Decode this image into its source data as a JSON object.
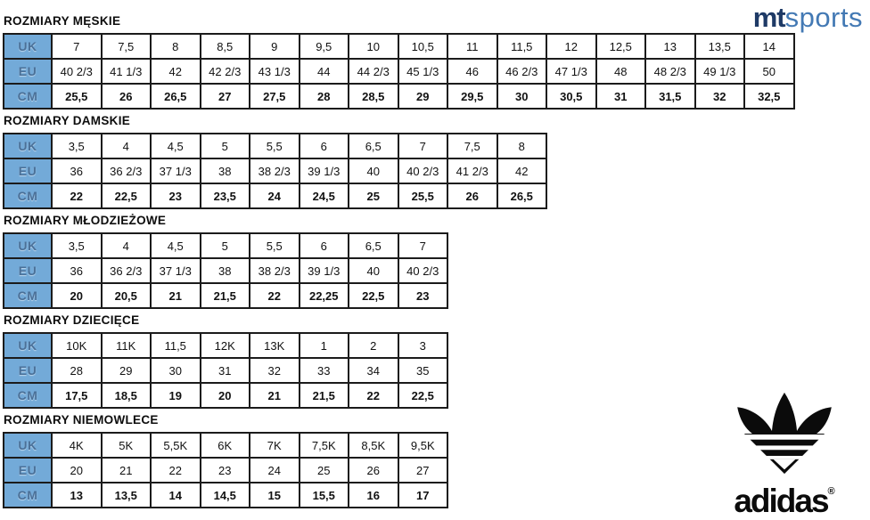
{
  "brand_top": {
    "bold_part": "mt",
    "light_part": "sports"
  },
  "brand_bottom": {
    "name": "adidas",
    "registered": "®"
  },
  "colors": {
    "header_cell_bg": "#73aad8",
    "header_cell_text": "#4a7098",
    "border": "#1b1b1b",
    "mt_dark": "#1e3a66",
    "sports_blue": "#4379b4",
    "logo_black": "#0b0b0b"
  },
  "sections": [
    {
      "title": "ROZMIARY MĘSKIE",
      "rows": [
        {
          "label": "UK",
          "values": [
            "7",
            "7,5",
            "8",
            "8,5",
            "9",
            "9,5",
            "10",
            "10,5",
            "11",
            "11,5",
            "12",
            "12,5",
            "13",
            "13,5",
            "14"
          ]
        },
        {
          "label": "EU",
          "values": [
            "40 2/3",
            "41 1/3",
            "42",
            "42 2/3",
            "43 1/3",
            "44",
            "44 2/3",
            "45 1/3",
            "46",
            "46 2/3",
            "47 1/3",
            "48",
            "48 2/3",
            "49 1/3",
            "50"
          ]
        },
        {
          "label": "CM",
          "values": [
            "25,5",
            "26",
            "26,5",
            "27",
            "27,5",
            "28",
            "28,5",
            "29",
            "29,5",
            "30",
            "30,5",
            "31",
            "31,5",
            "32",
            "32,5"
          ]
        }
      ]
    },
    {
      "title": "ROZMIARY DAMSKIE",
      "rows": [
        {
          "label": "UK",
          "values": [
            "3,5",
            "4",
            "4,5",
            "5",
            "5,5",
            "6",
            "6,5",
            "7",
            "7,5",
            "8"
          ]
        },
        {
          "label": "EU",
          "values": [
            "36",
            "36 2/3",
            "37 1/3",
            "38",
            "38 2/3",
            "39 1/3",
            "40",
            "40 2/3",
            "41 2/3",
            "42"
          ]
        },
        {
          "label": "CM",
          "values": [
            "22",
            "22,5",
            "23",
            "23,5",
            "24",
            "24,5",
            "25",
            "25,5",
            "26",
            "26,5"
          ]
        }
      ]
    },
    {
      "title": "ROZMIARY MŁODZIEŻOWE",
      "rows": [
        {
          "label": "UK",
          "values": [
            "3,5",
            "4",
            "4,5",
            "5",
            "5,5",
            "6",
            "6,5",
            "7"
          ]
        },
        {
          "label": "EU",
          "values": [
            "36",
            "36 2/3",
            "37 1/3",
            "38",
            "38 2/3",
            "39 1/3",
            "40",
            "40 2/3"
          ]
        },
        {
          "label": "CM",
          "values": [
            "20",
            "20,5",
            "21",
            "21,5",
            "22",
            "22,25",
            "22,5",
            "23"
          ]
        }
      ]
    },
    {
      "title": "ROZMIARY DZIECIĘCE",
      "rows": [
        {
          "label": "UK",
          "values": [
            "10K",
            "11K",
            "11,5",
            "12K",
            "13K",
            "1",
            "2",
            "3"
          ]
        },
        {
          "label": "EU",
          "values": [
            "28",
            "29",
            "30",
            "31",
            "32",
            "33",
            "34",
            "35"
          ]
        },
        {
          "label": "CM",
          "values": [
            "17,5",
            "18,5",
            "19",
            "20",
            "21",
            "21,5",
            "22",
            "22,5"
          ]
        }
      ]
    },
    {
      "title": "ROZMIARY NIEMOWLECE",
      "rows": [
        {
          "label": "UK",
          "values": [
            "4K",
            "5K",
            "5,5K",
            "6K",
            "7K",
            "7,5K",
            "8,5K",
            "9,5K"
          ]
        },
        {
          "label": "EU",
          "values": [
            "20",
            "21",
            "22",
            "23",
            "24",
            "25",
            "26",
            "27"
          ]
        },
        {
          "label": "CM",
          "values": [
            "13",
            "13,5",
            "14",
            "14,5",
            "15",
            "15,5",
            "16",
            "17"
          ]
        }
      ]
    }
  ]
}
